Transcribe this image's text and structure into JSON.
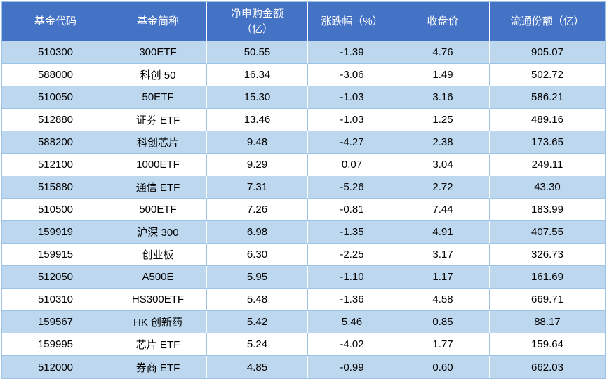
{
  "colors": {
    "header_bg": "#4472C4",
    "header_text": "#FFFFFF",
    "band_row_bg": "#BDD7EE",
    "plain_row_bg": "#FFFFFF",
    "grid_line": "#9DC3E6",
    "cell_text": "#000000"
  },
  "header_lines": [
    [
      "基金代码"
    ],
    [
      "基金简称"
    ],
    [
      "净申购金额",
      "（亿）"
    ],
    [
      "涨跌幅（%）"
    ],
    [
      "收盘价"
    ],
    [
      "流通份额（亿）"
    ]
  ],
  "chart_data": {
    "type": "table",
    "title": "",
    "columns": [
      "基金代码",
      "基金简称",
      "净申购金额（亿）",
      "涨跌幅（%）",
      "收盘价",
      "流通份额（亿）"
    ],
    "rows": [
      [
        "510300",
        "300ETF",
        "50.55",
        "-1.39",
        "4.76",
        "905.07"
      ],
      [
        "588000",
        "科创 50",
        "16.34",
        "-3.06",
        "1.49",
        "502.72"
      ],
      [
        "510050",
        "50ETF",
        "15.30",
        "-1.03",
        "3.16",
        "586.21"
      ],
      [
        "512880",
        "证券 ETF",
        "13.46",
        "-1.03",
        "1.25",
        "489.16"
      ],
      [
        "588200",
        "科创芯片",
        "9.48",
        "-4.27",
        "2.38",
        "173.65"
      ],
      [
        "512100",
        "1000ETF",
        "9.29",
        "0.07",
        "3.04",
        "249.11"
      ],
      [
        "515880",
        "通信 ETF",
        "7.31",
        "-5.26",
        "2.72",
        "43.30"
      ],
      [
        "510500",
        "500ETF",
        "7.26",
        "-0.81",
        "7.44",
        "183.99"
      ],
      [
        "159919",
        "沪深 300",
        "6.98",
        "-1.35",
        "4.91",
        "407.55"
      ],
      [
        "159915",
        "创业板",
        "6.30",
        "-2.25",
        "3.17",
        "326.73"
      ],
      [
        "512050",
        "A500E",
        "5.95",
        "-1.10",
        "1.17",
        "161.69"
      ],
      [
        "510310",
        "HS300ETF",
        "5.48",
        "-1.36",
        "4.58",
        "669.71"
      ],
      [
        "159567",
        "HK 创新药",
        "5.42",
        "5.46",
        "0.85",
        "88.17"
      ],
      [
        "159995",
        "芯片 ETF",
        "5.24",
        "-4.02",
        "1.77",
        "159.64"
      ],
      [
        "512000",
        "券商 ETF",
        "4.85",
        "-0.99",
        "0.60",
        "662.03"
      ]
    ]
  }
}
